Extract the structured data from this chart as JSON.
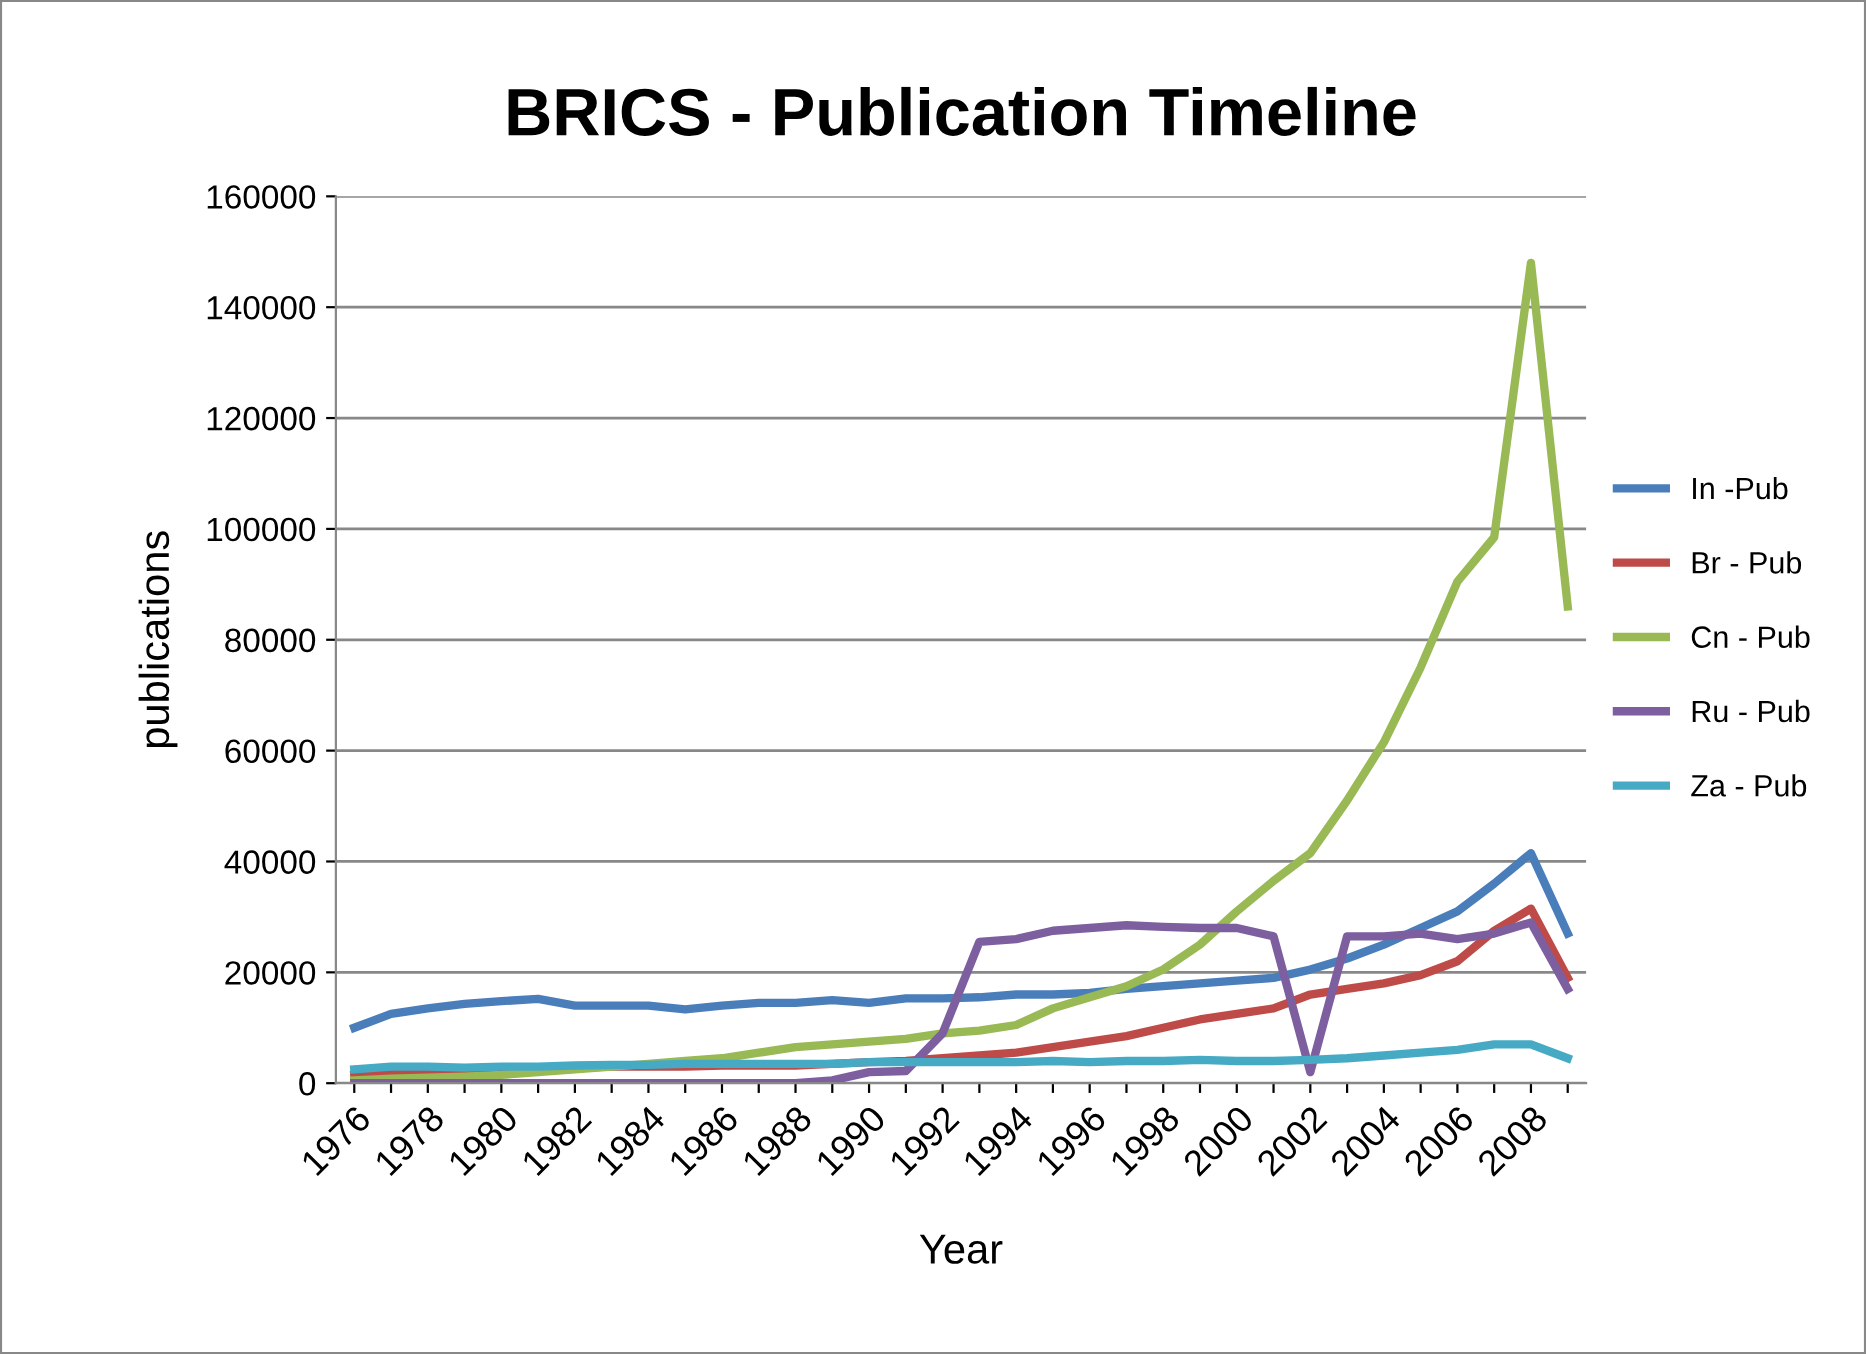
{
  "chart_data": {
    "type": "line",
    "title": "BRICS - Publication Timeline",
    "xlabel": "Year",
    "ylabel": "publications",
    "categories": [
      "1976",
      null,
      "1978",
      null,
      "1980",
      null,
      "1982",
      null,
      "1984",
      null,
      "1986",
      null,
      "1988",
      null,
      "1990",
      null,
      "1992",
      null,
      "1994",
      null,
      "1996",
      null,
      "1998",
      null,
      "2000",
      null,
      "2002",
      null,
      "2004",
      null,
      "2006",
      null,
      "2008",
      null
    ],
    "series": [
      {
        "name": "In -Pub",
        "color": "#4a7ebb",
        "values": [
          10000,
          12500,
          13500,
          14300,
          14800,
          15200,
          14000,
          14000,
          14000,
          13300,
          14000,
          14500,
          14500,
          15000,
          14500,
          15300,
          15300,
          15500,
          16000,
          16000,
          16300,
          17000,
          17500,
          18000,
          18500,
          19000,
          20500,
          22500,
          25000,
          28000,
          31000,
          36000,
          41500,
          27000
        ]
      },
      {
        "name": "Br - Pub",
        "color": "#be4b48",
        "values": [
          1500,
          2000,
          2000,
          1800,
          2000,
          2500,
          2800,
          3000,
          3000,
          3000,
          3200,
          3200,
          3200,
          3500,
          3800,
          4000,
          4500,
          5000,
          5500,
          6500,
          7500,
          8500,
          10000,
          11500,
          12500,
          13500,
          16000,
          17000,
          18000,
          19500,
          22000,
          27500,
          31500,
          19000
        ]
      },
      {
        "name": "Cn - Pub",
        "color": "#98b954",
        "values": [
          500,
          800,
          1000,
          1200,
          1500,
          2000,
          2500,
          3000,
          3500,
          4000,
          4500,
          5500,
          6500,
          7000,
          7500,
          8000,
          9000,
          9500,
          10500,
          13500,
          15500,
          17500,
          20500,
          25000,
          31000,
          36500,
          41500,
          51000,
          61500,
          75000,
          90500,
          98500,
          148000,
          86000
        ]
      },
      {
        "name": "Ru - Pub",
        "color": "#7d5fa0",
        "values": [
          0,
          0,
          0,
          0,
          0,
          0,
          0,
          0,
          0,
          0,
          0,
          0,
          0,
          500,
          2000,
          2200,
          9000,
          25500,
          26000,
          27500,
          28000,
          28500,
          28200,
          28000,
          28000,
          26500,
          2000,
          26500,
          26500,
          27000,
          26000,
          27000,
          29000,
          17000
        ]
      },
      {
        "name": "Za - Pub",
        "color": "#46aac5",
        "values": [
          2500,
          3000,
          3000,
          2800,
          3000,
          3000,
          3200,
          3300,
          3300,
          3500,
          3500,
          3500,
          3500,
          3500,
          3800,
          3800,
          3800,
          3800,
          3800,
          4000,
          3800,
          4000,
          4000,
          4200,
          4000,
          4000,
          4200,
          4500,
          5000,
          5500,
          6000,
          7000,
          7000,
          4500
        ]
      }
    ],
    "ylim": [
      0,
      160000
    ],
    "yticks": [
      0,
      20000,
      40000,
      60000,
      80000,
      100000,
      120000,
      140000,
      160000
    ],
    "grid": "y",
    "legend": "right",
    "marker": "none",
    "line_style": "solid"
  }
}
